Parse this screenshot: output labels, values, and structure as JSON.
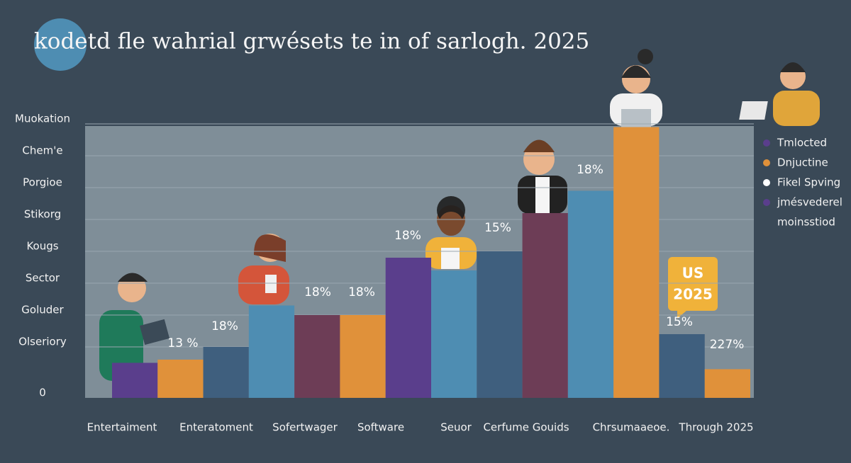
{
  "chart_data": {
    "type": "bar",
    "title": "kodetd fle wahrial grwésets te in of sarlogh. 2025",
    "categories": [
      "Entertaiment",
      "Enteratoment",
      "Sofertwager",
      "Software",
      "Seuor",
      "Cerfume Gouids",
      "Chrsumaaeoe.",
      "Through 2025"
    ],
    "bars": [
      {
        "color": "#5a3e8c",
        "value": 11
      },
      {
        "color": "#e0913a",
        "value": 12
      },
      {
        "color": "#3f5f7e",
        "value": 16
      },
      {
        "color": "#4e8db2",
        "value": 29
      },
      {
        "color": "#6d3d56",
        "value": 26
      },
      {
        "color": "#e0913a",
        "value": 26
      },
      {
        "color": "#5a3e8c",
        "value": 44
      },
      {
        "color": "#4e8db2",
        "value": 40
      },
      {
        "color": "#3f5f7e",
        "value": 46
      },
      {
        "color": "#6d3d56",
        "value": 58
      },
      {
        "color": "#4e8db2",
        "value": 65
      },
      {
        "color": "#e0913a",
        "value": 85
      },
      {
        "color": "#3f5f7e",
        "value": 20
      },
      {
        "color": "#e0913a",
        "value": 9
      }
    ],
    "ylim": [
      0,
      86
    ],
    "yticks": [
      0,
      {
        "value": 16,
        "label": "Olseriory"
      },
      {
        "value": 26,
        "label": "Goluder"
      },
      {
        "value": 36,
        "label": "Sector"
      },
      {
        "value": 46,
        "label": "Kougs"
      },
      {
        "value": 56,
        "label": "Stikorg"
      },
      {
        "value": 66,
        "label": "Porgioe"
      },
      {
        "value": 76,
        "label": "Chem'e"
      },
      {
        "value": 86,
        "label": "Muokation"
      }
    ],
    "grid": true,
    "annotations": [
      "13 %",
      "18%",
      "18%",
      "18%",
      "18%",
      "15%",
      "18%",
      "15%",
      "227%"
    ],
    "callout": [
      "US",
      "2025"
    ],
    "legend": [
      {
        "name": "Tmlocted",
        "color": "#5a3e8c"
      },
      {
        "name": "Dnjuctine",
        "color": "#e0913a"
      },
      {
        "name": "Fikel Spving",
        "color": "#ffffff"
      },
      {
        "name": "jmésvederel",
        "color": "#5a3e8c"
      },
      {
        "name": "moinsstiod"
      }
    ]
  }
}
